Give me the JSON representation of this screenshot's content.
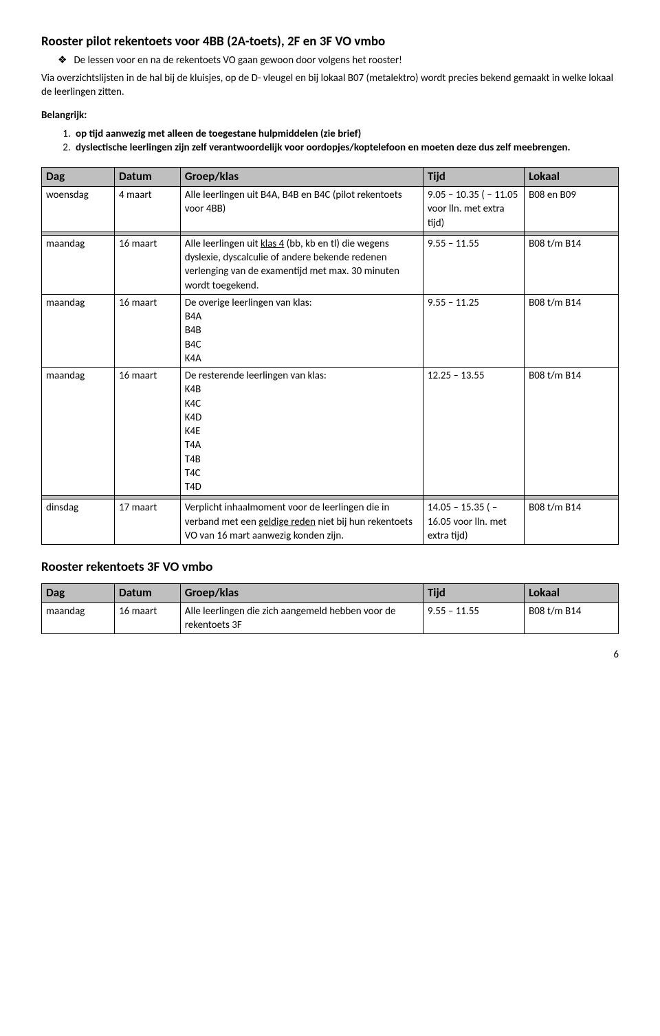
{
  "heading1": "Rooster pilot rekentoets voor 4BB (2A-toets), 2F en 3F VO vmbo",
  "bullet_text": "De lessen voor en na de rekentoets VO gaan gewoon door volgens het rooster!",
  "para_via": "Via overzichtslijsten in de hal bij de kluisjes, op de D- vleugel en bij lokaal B07 (metalektro) wordt precies bekend gemaakt in welke lokaal de leerlingen zitten.",
  "belangrijk_label": "Belangrijk:",
  "belangrijk_items": [
    "op tijd aanwezig met alleen de toegestane hulpmiddelen (zie brief)",
    "dyslectische leerlingen zijn zelf verantwoordelijk voor oordopjes/koptelefoon en moeten deze dus zelf meebrengen."
  ],
  "table_headers": {
    "dag": "Dag",
    "datum": "Datum",
    "groep": "Groep/klas",
    "tijd": "Tijd",
    "lokaal": "Lokaal"
  },
  "row1": {
    "dag": "woensdag",
    "datum": "4 maart",
    "groep": "Alle leerlingen uit B4A, B4B en B4C (pilot rekentoets voor 4BB)",
    "tijd": "9.05 – 10.35 ( – 11.05 voor lln. met extra tijd)",
    "lokaal": "B08 en B09"
  },
  "row2": {
    "dag": "maandag",
    "datum": "16 maart",
    "groep_pre": "Alle leerlingen uit ",
    "groep_u": "klas 4",
    "groep_post": " (bb, kb en tl) die wegens dyslexie, dyscalculie of andere bekende redenen verlenging van de examentijd met max. 30 minuten wordt toegekend.",
    "tijd": "9.55 – 11.55",
    "lokaal": "B08 t/m B14"
  },
  "row3": {
    "dag": "maandag",
    "datum": "16 maart",
    "groep": "De overige leerlingen van klas:\nB4A\nB4B\nB4C\nK4A",
    "tijd": "9.55 – 11.25",
    "lokaal": "B08 t/m B14"
  },
  "row4": {
    "dag": "maandag",
    "datum": "16 maart",
    "groep": "De resterende leerlingen van klas:\nK4B\nK4C\nK4D\nK4E\nT4A\nT4B\nT4C\nT4D",
    "tijd": "12.25 – 13.55",
    "lokaal": "B08 t/m B14"
  },
  "row5": {
    "dag": "dinsdag",
    "datum": "17 maart",
    "groep_pre": "Verplicht inhaalmoment voor de leerlingen die in verband met een ",
    "groep_u": "geldige reden",
    "groep_post": " niet bij hun rekentoets VO van 16 mart aanwezig konden zijn.",
    "tijd": "14.05 – 15.35 ( – 16.05 voor lln. met extra tijd)",
    "lokaal": "B08 t/m B14"
  },
  "heading2": "Rooster rekentoets 3F VO vmbo",
  "row6": {
    "dag": "maandag",
    "datum": "16 maart",
    "groep": "Alle leerlingen die zich aangemeld hebben voor de rekentoets 3F",
    "tijd": "9.55 – 11.55",
    "lokaal": "B08 t/m B14"
  },
  "page_number": "6"
}
